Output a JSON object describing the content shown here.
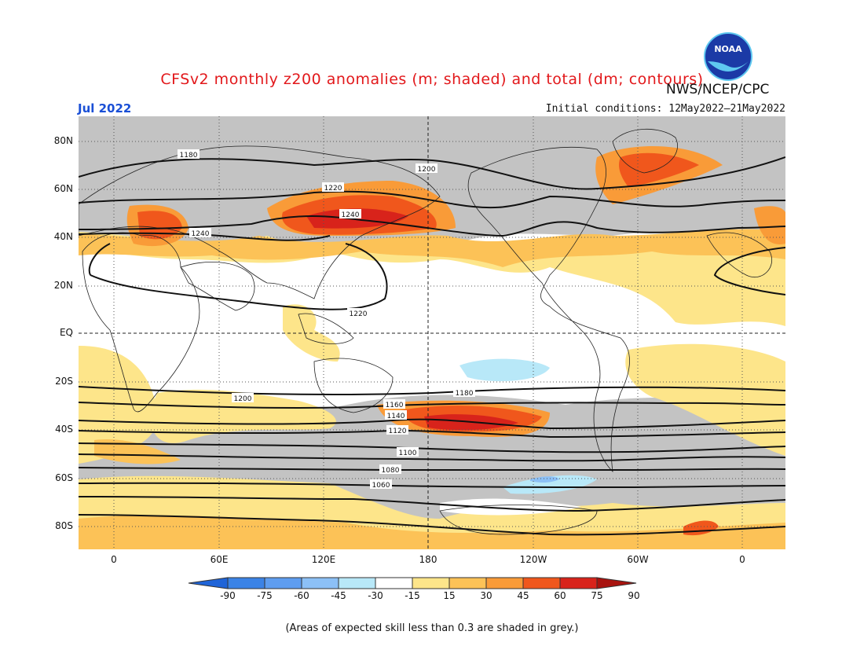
{
  "header": {
    "title": "CFSv2 monthly z200 anomalies (m; shaded) and total (dm; contours)",
    "month": "Jul 2022",
    "initial_conditions": "Initial conditions: 12May2022–21May2022",
    "agency": "NWS/NCEP/CPC",
    "logo_text": "NOAA"
  },
  "map": {
    "lon_labels": [
      "0",
      "60E",
      "120E",
      "180",
      "120W",
      "60W",
      "0"
    ],
    "lat_labels": [
      "80N",
      "60N",
      "40N",
      "20N",
      "EQ",
      "20S",
      "40S",
      "60S",
      "80S"
    ],
    "contour_labels": [
      "1180",
      "1200",
      "1220",
      "1240",
      "1240",
      "1220",
      "1200",
      "1180",
      "1160",
      "1140",
      "1120",
      "1100",
      "1080",
      "1060"
    ]
  },
  "colorbar": {
    "labels": [
      "-90",
      "-75",
      "-60",
      "-45",
      "-30",
      "-15",
      "15",
      "30",
      "45",
      "60",
      "75",
      "90"
    ],
    "colors": [
      "#1f64d8",
      "#3b83e6",
      "#5e9df0",
      "#8cc0f6",
      "#b8e8f8",
      "#ffffff",
      "#fde58a",
      "#fcc257",
      "#f99b38",
      "#f0571c",
      "#d8231b",
      "#a8130f"
    ]
  },
  "footer": {
    "note": "(Areas of expected skill less than 0.3 are shaded in grey.)"
  }
}
